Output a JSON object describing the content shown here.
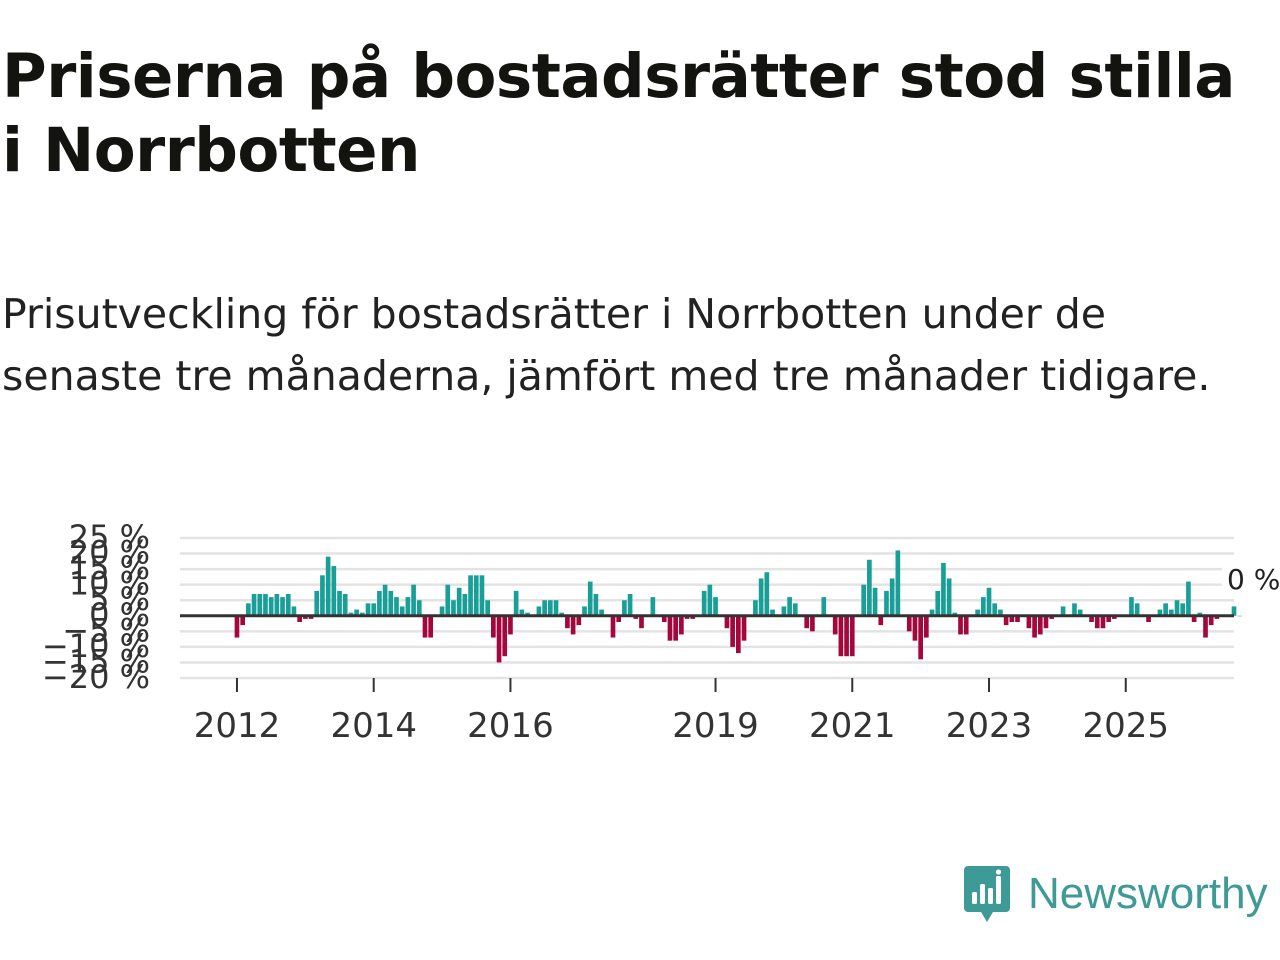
{
  "header": {
    "title": "Priserna på bostadsrätter stod stilla i Norrbotten",
    "subtitle": "Prisutveckling för bostadsrätter i Norrbotten under de senaste tre månaderna, jämfört med tre månader tidigare."
  },
  "brand": {
    "name": "Newsworthy",
    "color": "#3d9a96",
    "icon": "newsworthy-logo-icon"
  },
  "colors": {
    "positive": "#1a9e98",
    "negative": "#a3073c",
    "zero_line": "#333333",
    "grid": "#e3e3e3"
  },
  "chart_data": {
    "type": "bar",
    "title": "Priserna på bostadsrätter stod stilla i Norrbotten",
    "xlabel": "",
    "ylabel": "",
    "ylim": [
      -20,
      25
    ],
    "y_ticks": [
      -20,
      -15,
      -10,
      -5,
      0,
      5,
      10,
      15,
      20,
      25
    ],
    "y_tick_labels": [
      "−20 %",
      "−15 %",
      "−10 %",
      "−5 %",
      "0 %",
      "5 %",
      "10 %",
      "15 %",
      "20 %",
      "25 %"
    ],
    "x_ticks": [
      2012,
      2014,
      2016,
      2019,
      2021,
      2023,
      2025
    ],
    "x_tick_labels": [
      "2012",
      "2014",
      "2016",
      "2019",
      "2021",
      "2023",
      "2025"
    ],
    "x_start": "2011-03",
    "x_end": "2026-08",
    "first_bar": "2012-01",
    "annotation": {
      "label": "0 %",
      "anchor": "last"
    },
    "series": [
      {
        "name": "Prisutveckling (%)",
        "frequency": "monthly",
        "start": "2012-01",
        "values": [
          -7,
          -3,
          4,
          7,
          7,
          7,
          6,
          7,
          6,
          7,
          3,
          -2,
          -1,
          -1,
          8,
          13,
          19,
          16,
          8,
          7,
          1,
          2,
          1,
          4,
          4,
          8,
          10,
          8,
          6,
          3,
          6,
          10,
          5,
          -7,
          -7,
          0,
          3,
          10,
          5,
          9,
          7,
          13,
          13,
          13,
          5,
          -7,
          -15,
          -13,
          -6,
          8,
          2,
          1,
          0,
          3,
          5,
          5,
          5,
          1,
          -4,
          -6,
          -3,
          3,
          11,
          7,
          2,
          0,
          -7,
          -2,
          5,
          7,
          -1,
          -4,
          0,
          6,
          0,
          -2,
          -8,
          -8,
          -6,
          -1,
          -1,
          0,
          8,
          10,
          6,
          0,
          -4,
          -10,
          -12,
          -8,
          0,
          5,
          12,
          14,
          2,
          0,
          3,
          6,
          4,
          0,
          -4,
          -5,
          0,
          6,
          0,
          -6,
          -13,
          -13,
          -13,
          0,
          10,
          18,
          9,
          -3,
          8,
          12,
          21,
          0,
          -5,
          -8,
          -14,
          -7,
          2,
          8,
          17,
          12,
          1,
          -6,
          -6,
          0,
          2,
          6,
          9,
          4,
          2,
          -3,
          -2,
          -2,
          0,
          -4,
          -7,
          -6,
          -4,
          -1,
          0,
          3,
          0,
          4,
          2,
          0,
          -2,
          -4,
          -4,
          -2,
          -1,
          0,
          0,
          6,
          4,
          0,
          -2,
          0,
          2,
          4,
          2,
          5,
          4,
          11,
          -2,
          1,
          -7,
          -3,
          -1,
          0,
          0,
          3,
          0
        ]
      }
    ]
  }
}
